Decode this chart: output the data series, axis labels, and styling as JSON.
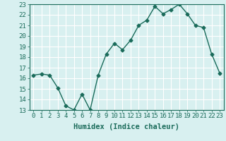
{
  "x": [
    0,
    1,
    2,
    3,
    4,
    5,
    6,
    7,
    8,
    9,
    10,
    11,
    12,
    13,
    14,
    15,
    16,
    17,
    18,
    19,
    20,
    21,
    22,
    23
  ],
  "y": [
    16.3,
    16.4,
    16.3,
    15.1,
    13.4,
    13.0,
    14.5,
    13.0,
    16.3,
    18.3,
    19.3,
    18.7,
    19.6,
    21.0,
    21.5,
    22.8,
    22.1,
    22.5,
    23.0,
    22.1,
    21.0,
    20.8,
    18.3,
    16.5
  ],
  "line_color": "#1a6b5a",
  "bg_color": "#d8f0f0",
  "grid_color": "#ffffff",
  "xlabel": "Humidex (Indice chaleur)",
  "ylim": [
    13,
    23
  ],
  "xlim": [
    -0.5,
    23.5
  ],
  "yticks": [
    13,
    14,
    15,
    16,
    17,
    18,
    19,
    20,
    21,
    22,
    23
  ],
  "xticks": [
    0,
    1,
    2,
    3,
    4,
    5,
    6,
    7,
    8,
    9,
    10,
    11,
    12,
    13,
    14,
    15,
    16,
    17,
    18,
    19,
    20,
    21,
    22,
    23
  ],
  "marker": "D",
  "marker_size": 2.5,
  "line_width": 1.0,
  "font_color": "#1a6b5a",
  "tick_fontsize": 6.5,
  "xlabel_fontsize": 7.5
}
